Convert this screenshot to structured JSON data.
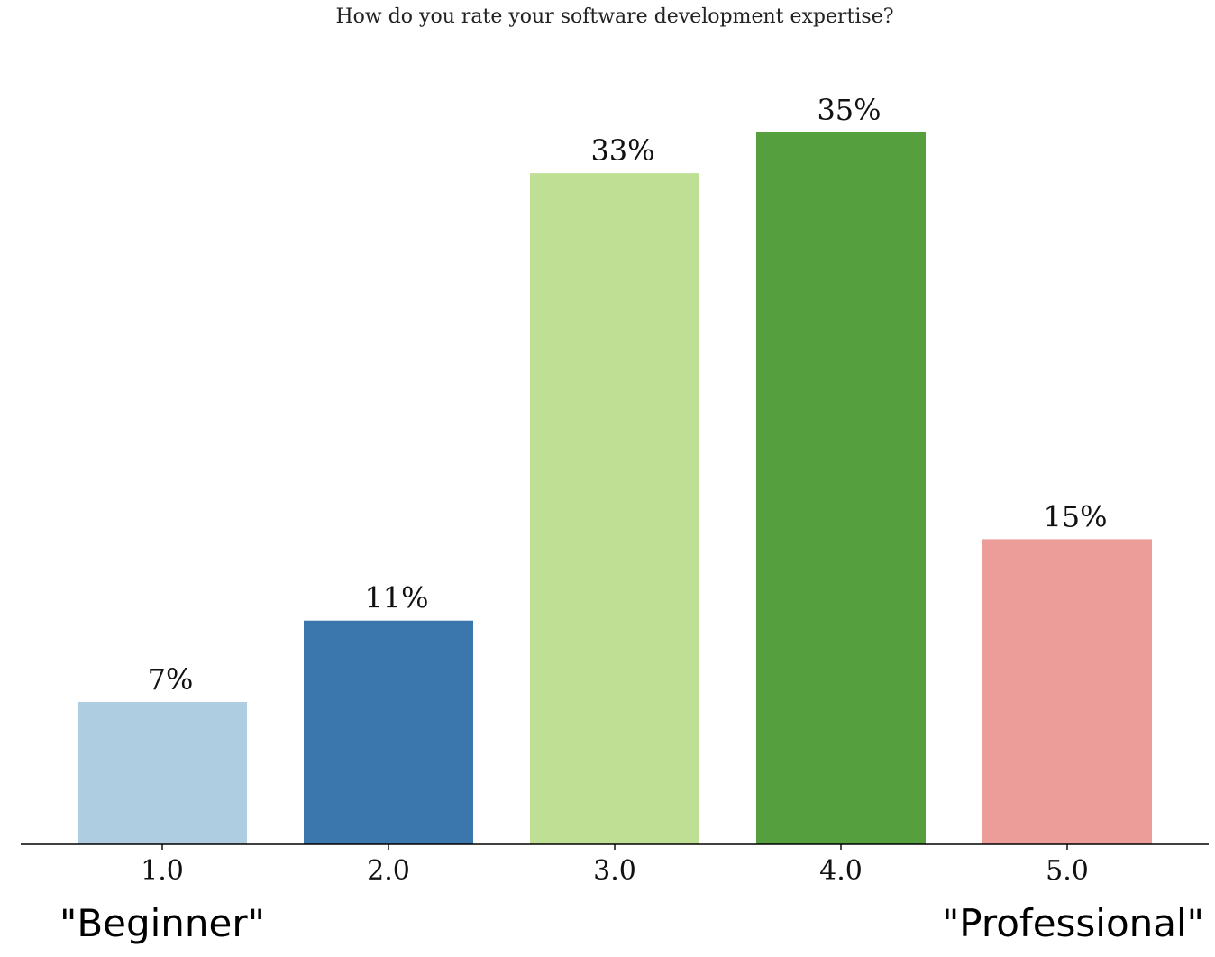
{
  "chart_data": {
    "type": "bar",
    "title": "How do you rate your software development expertise?",
    "categories": [
      "1.0",
      "2.0",
      "3.0",
      "4.0",
      "5.0"
    ],
    "values": [
      7,
      11,
      33,
      35,
      15
    ],
    "value_labels": [
      "7%",
      "11%",
      "33%",
      "35%",
      "15%"
    ],
    "colors": [
      "#aecde1",
      "#3b76ad",
      "#bedf94",
      "#559f3f",
      "#ec9c99"
    ],
    "xlabel": "",
    "ylabel": "",
    "ylim": [
      0,
      35
    ],
    "grid": false,
    "scale_labels": {
      "low": "\"Beginner\"",
      "high": "\"Professional\""
    }
  }
}
